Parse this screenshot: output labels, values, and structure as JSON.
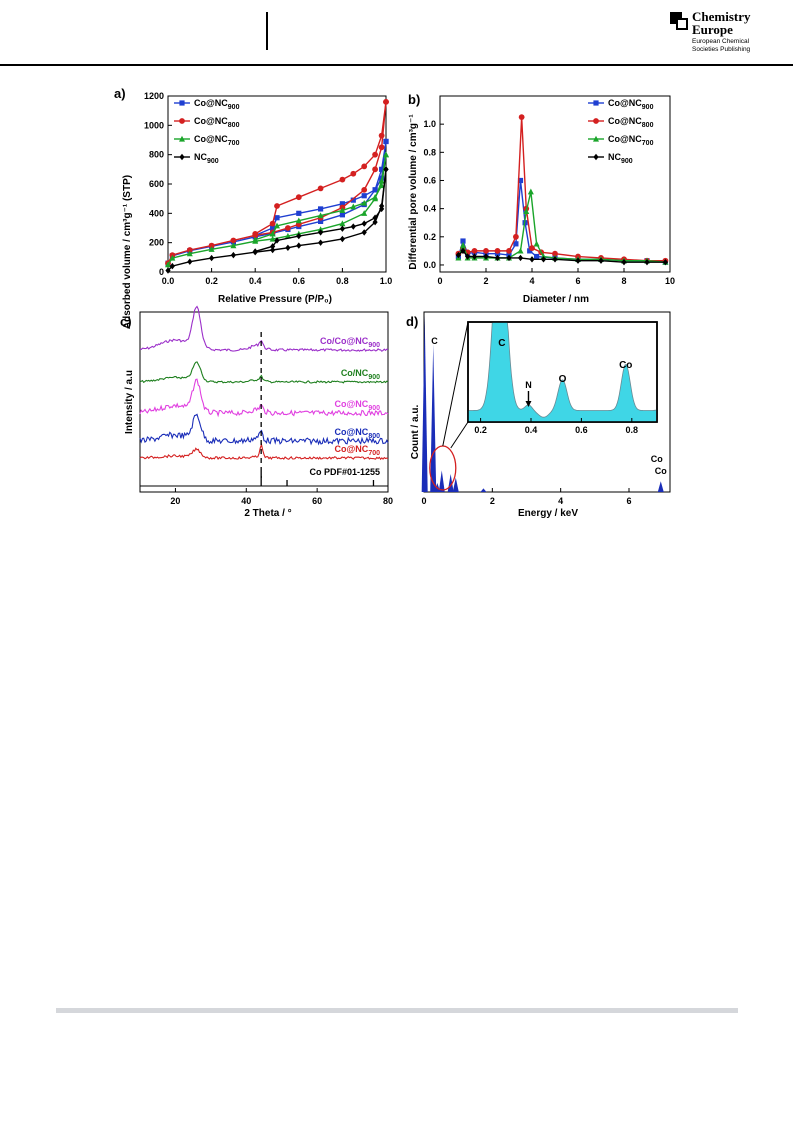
{
  "header": {
    "logo_title_line1": "Chemistry",
    "logo_title_line2": "Europe",
    "logo_subtitle_line1": "European Chemical",
    "logo_subtitle_line2": "Societies Publishing"
  },
  "panels": {
    "a": {
      "label": "a)",
      "ylabel": "Adsorbed volume / cm³g⁻¹ (STP)",
      "xlabel": "Relative Pressure (P/P₀)"
    },
    "b": {
      "label": "b)",
      "ylabel": "Differential pore volume / cm³g⁻¹",
      "xlabel": "Diameter / nm"
    },
    "c": {
      "label": "c)",
      "ylabel": "Intensity / a.u",
      "xlabel": "2 Theta / °"
    },
    "d": {
      "label": "d)",
      "ylabel": "Count / a.u.",
      "xlabel": "Energy / keV"
    }
  },
  "chart_data": [
    {
      "panel": "a",
      "type": "line",
      "xlabel": "Relative Pressure (P/P0)",
      "ylabel": "Adsorbed volume / cm3g-1 (STP)",
      "xlim": [
        0,
        1.0
      ],
      "ylim": [
        0,
        1200
      ],
      "xticks": [
        "0.0",
        "0.2",
        "0.4",
        "0.6",
        "0.8",
        "1.0"
      ],
      "yticks": [
        "0",
        "200",
        "400",
        "600",
        "800",
        "1000",
        "1200"
      ],
      "legend_position": "top-left",
      "series": [
        {
          "name": "Co@NC900",
          "color": "#1f3fd1",
          "marker": "square",
          "adsorption": [
            [
              0,
              60
            ],
            [
              0.02,
              110
            ],
            [
              0.1,
              145
            ],
            [
              0.2,
              175
            ],
            [
              0.3,
              205
            ],
            [
              0.4,
              240
            ],
            [
              0.48,
              265
            ],
            [
              0.55,
              290
            ],
            [
              0.6,
              310
            ],
            [
              0.7,
              345
            ],
            [
              0.8,
              390
            ],
            [
              0.9,
              460
            ],
            [
              0.95,
              560
            ],
            [
              0.98,
              700
            ],
            [
              1.0,
              890
            ]
          ],
          "desorption": [
            [
              1.0,
              890
            ],
            [
              0.98,
              640
            ],
            [
              0.95,
              560
            ],
            [
              0.9,
              520
            ],
            [
              0.85,
              490
            ],
            [
              0.8,
              465
            ],
            [
              0.7,
              430
            ],
            [
              0.6,
              400
            ],
            [
              0.5,
              370
            ],
            [
              0.48,
              300
            ],
            [
              0.4,
              250
            ]
          ]
        },
        {
          "name": "Co@NC800",
          "color": "#d42020",
          "marker": "circle",
          "adsorption": [
            [
              0,
              60
            ],
            [
              0.02,
              115
            ],
            [
              0.1,
              150
            ],
            [
              0.2,
              180
            ],
            [
              0.3,
              215
            ],
            [
              0.4,
              250
            ],
            [
              0.48,
              270
            ],
            [
              0.55,
              300
            ],
            [
              0.6,
              325
            ],
            [
              0.7,
              370
            ],
            [
              0.8,
              440
            ],
            [
              0.9,
              560
            ],
            [
              0.95,
              700
            ],
            [
              0.98,
              850
            ],
            [
              1.0,
              1160
            ]
          ],
          "desorption": [
            [
              1.0,
              1160
            ],
            [
              0.98,
              930
            ],
            [
              0.95,
              800
            ],
            [
              0.9,
              720
            ],
            [
              0.85,
              670
            ],
            [
              0.8,
              630
            ],
            [
              0.7,
              570
            ],
            [
              0.6,
              510
            ],
            [
              0.5,
              450
            ],
            [
              0.48,
              330
            ],
            [
              0.4,
              260
            ]
          ]
        },
        {
          "name": "Co@NC700",
          "color": "#1aa52a",
          "marker": "triangle",
          "adsorption": [
            [
              0,
              50
            ],
            [
              0.02,
              95
            ],
            [
              0.1,
              125
            ],
            [
              0.2,
              155
            ],
            [
              0.3,
              180
            ],
            [
              0.4,
              210
            ],
            [
              0.48,
              225
            ],
            [
              0.55,
              245
            ],
            [
              0.6,
              260
            ],
            [
              0.7,
              290
            ],
            [
              0.8,
              330
            ],
            [
              0.9,
              400
            ],
            [
              0.95,
              500
            ],
            [
              0.98,
              620
            ],
            [
              1.0,
              800
            ]
          ],
          "desorption": [
            [
              1.0,
              800
            ],
            [
              0.98,
              590
            ],
            [
              0.95,
              510
            ],
            [
              0.9,
              470
            ],
            [
              0.85,
              445
            ],
            [
              0.8,
              420
            ],
            [
              0.7,
              385
            ],
            [
              0.6,
              350
            ],
            [
              0.5,
              315
            ],
            [
              0.48,
              260
            ],
            [
              0.4,
              220
            ]
          ]
        },
        {
          "name": "NC900",
          "color": "#000000",
          "marker": "diamond",
          "adsorption": [
            [
              0,
              10
            ],
            [
              0.02,
              40
            ],
            [
              0.1,
              70
            ],
            [
              0.2,
              95
            ],
            [
              0.3,
              115
            ],
            [
              0.4,
              135
            ],
            [
              0.48,
              150
            ],
            [
              0.55,
              165
            ],
            [
              0.6,
              180
            ],
            [
              0.7,
              200
            ],
            [
              0.8,
              225
            ],
            [
              0.9,
              270
            ],
            [
              0.95,
              340
            ],
            [
              0.98,
              450
            ],
            [
              1.0,
              700
            ]
          ],
          "desorption": [
            [
              1.0,
              700
            ],
            [
              0.98,
              430
            ],
            [
              0.95,
              370
            ],
            [
              0.9,
              330
            ],
            [
              0.85,
              310
            ],
            [
              0.8,
              295
            ],
            [
              0.7,
              270
            ],
            [
              0.6,
              245
            ],
            [
              0.5,
              215
            ],
            [
              0.48,
              175
            ],
            [
              0.4,
              140
            ]
          ]
        }
      ]
    },
    {
      "panel": "b",
      "type": "line",
      "xlabel": "Diameter / nm",
      "ylabel": "Differential pore volume / cm3g-1",
      "xlim": [
        0,
        10
      ],
      "ylim": [
        -0.05,
        1.2
      ],
      "xticks": [
        "0",
        "2",
        "4",
        "6",
        "8",
        "10"
      ],
      "yticks": [
        "0.0",
        "0.2",
        "0.4",
        "0.6",
        "0.8",
        "1.0"
      ],
      "legend_position": "top-right",
      "series": [
        {
          "name": "Co@NC900",
          "color": "#1f3fd1",
          "marker": "square",
          "points": [
            [
              0.8,
              0.06
            ],
            [
              1.0,
              0.17
            ],
            [
              1.2,
              0.08
            ],
            [
              1.5,
              0.09
            ],
            [
              2.0,
              0.08
            ],
            [
              2.5,
              0.08
            ],
            [
              3.0,
              0.07
            ],
            [
              3.3,
              0.15
            ],
            [
              3.5,
              0.6
            ],
            [
              3.7,
              0.3
            ],
            [
              3.9,
              0.1
            ],
            [
              4.2,
              0.06
            ],
            [
              5,
              0.05
            ],
            [
              6,
              0.04
            ],
            [
              7,
              0.04
            ],
            [
              8,
              0.03
            ],
            [
              9,
              0.03
            ],
            [
              9.8,
              0.02
            ]
          ]
        },
        {
          "name": "Co@NC800",
          "color": "#d42020",
          "marker": "circle",
          "points": [
            [
              0.8,
              0.08
            ],
            [
              1.0,
              0.12
            ],
            [
              1.2,
              0.09
            ],
            [
              1.5,
              0.1
            ],
            [
              2.0,
              0.1
            ],
            [
              2.5,
              0.1
            ],
            [
              3.0,
              0.1
            ],
            [
              3.3,
              0.2
            ],
            [
              3.55,
              1.05
            ],
            [
              3.75,
              0.4
            ],
            [
              4.0,
              0.12
            ],
            [
              4.4,
              0.09
            ],
            [
              5,
              0.08
            ],
            [
              6,
              0.06
            ],
            [
              7,
              0.05
            ],
            [
              8,
              0.04
            ],
            [
              9,
              0.03
            ],
            [
              9.8,
              0.03
            ]
          ]
        },
        {
          "name": "Co@NC700",
          "color": "#1aa52a",
          "marker": "triangle",
          "points": [
            [
              0.8,
              0.05
            ],
            [
              1.0,
              0.14
            ],
            [
              1.2,
              0.05
            ],
            [
              1.5,
              0.05
            ],
            [
              2.0,
              0.05
            ],
            [
              2.5,
              0.05
            ],
            [
              3.0,
              0.05
            ],
            [
              3.5,
              0.1
            ],
            [
              3.75,
              0.38
            ],
            [
              3.95,
              0.52
            ],
            [
              4.2,
              0.15
            ],
            [
              4.5,
              0.06
            ],
            [
              5,
              0.05
            ],
            [
              6,
              0.04
            ],
            [
              7,
              0.04
            ],
            [
              8,
              0.03
            ],
            [
              9,
              0.03
            ],
            [
              9.8,
              0.02
            ]
          ]
        },
        {
          "name": "NC900",
          "color": "#000000",
          "marker": "diamond",
          "points": [
            [
              0.8,
              0.07
            ],
            [
              1.0,
              0.1
            ],
            [
              1.2,
              0.06
            ],
            [
              1.5,
              0.06
            ],
            [
              2.0,
              0.06
            ],
            [
              2.5,
              0.05
            ],
            [
              3.0,
              0.05
            ],
            [
              3.5,
              0.05
            ],
            [
              4.0,
              0.04
            ],
            [
              4.5,
              0.04
            ],
            [
              5,
              0.04
            ],
            [
              6,
              0.03
            ],
            [
              7,
              0.03
            ],
            [
              8,
              0.02
            ],
            [
              9,
              0.02
            ],
            [
              9.8,
              0.02
            ]
          ]
        }
      ]
    },
    {
      "panel": "c",
      "type": "line",
      "xlabel": "2 Theta / o",
      "ylabel": "Intensity / a.u",
      "xlim": [
        10,
        80
      ],
      "xticks": [
        "20",
        "40",
        "60",
        "80"
      ],
      "reference_line_x": 44.2,
      "series": [
        {
          "name": "Co/Co@NC900",
          "color": "#9b2fc9",
          "baseline": 350,
          "peak26": 40,
          "peak44": 6,
          "noise": 1.2
        },
        {
          "name": "Co/NC900",
          "color": "#1e7f1e",
          "baseline": 382,
          "peak26": 18,
          "peak44": 4,
          "noise": 1.0
        },
        {
          "name": "Co@NC900",
          "color": "#e040e0",
          "baseline": 413,
          "peak26": 30,
          "peak44": 5,
          "noise": 2.5
        },
        {
          "name": "Co@NC800",
          "color": "#1a2db8",
          "baseline": 441,
          "peak26": 24,
          "peak44": 8,
          "noise": 3.0
        },
        {
          "name": "Co@NC700",
          "color": "#d42020",
          "baseline": 458,
          "peak26": 8,
          "peak44": 12,
          "noise": 1.2
        }
      ],
      "reference": {
        "name": "Co PDF#01-1255",
        "sticks": [
          44.2,
          51.5,
          75.9
        ]
      }
    },
    {
      "panel": "d",
      "type": "bar",
      "xlabel": "Energy / keV",
      "ylabel": "Count / a.u.",
      "xlim": [
        0,
        7.2
      ],
      "xticks": [
        "0",
        "2",
        "4",
        "6"
      ],
      "peak_labels": [
        "C",
        "Co",
        "Co"
      ],
      "inset": {
        "xlim": [
          0.15,
          0.9
        ],
        "xticks": [
          "0.2",
          "0.4",
          "0.6",
          "0.8"
        ],
        "peak_labels": [
          "C",
          "N",
          "O",
          "Co"
        ],
        "color": "#3fd6e6"
      }
    }
  ]
}
